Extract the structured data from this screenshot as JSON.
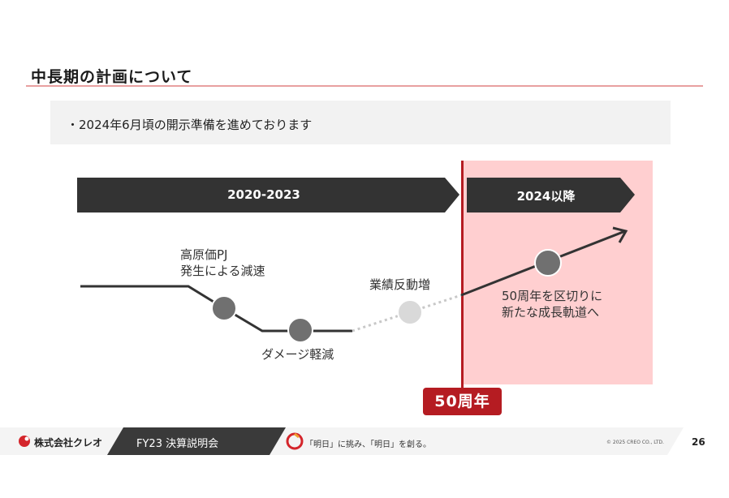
{
  "slide": {
    "title": "中長期の計画について",
    "bullet": "・2024年6月頃の開示準備を進めております"
  },
  "timeline": {
    "phase1_label": "2020-2023",
    "phase2_label": "2024以降",
    "milestone_badge": "50周年",
    "point1_label_line1": "高原価PJ",
    "point1_label_line2": "発生による減速",
    "point2_label": "ダメージ軽減",
    "point3_label": "業績反動増",
    "point4_label_line1": "50周年を区切りに",
    "point4_label_line2": "新たな成長軌道へ"
  },
  "footer": {
    "company": "株式会社クレオ",
    "event": "FY23 決算説明会",
    "slogan": "「明日」に挑み、「明日」を創る。",
    "copyright": "© 2025 CREO CO., LTD.",
    "page_number": "26"
  },
  "colors": {
    "brand_red": "#b51c22",
    "highlight_pink": "#ffcfd0",
    "arrow_dark": "#333333",
    "dot_gray": "#707070",
    "dot_light": "#d9d9d9"
  }
}
